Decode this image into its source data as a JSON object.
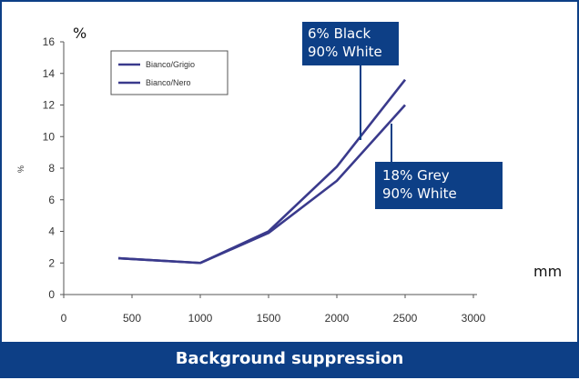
{
  "chart_data": {
    "type": "line",
    "x": [
      400,
      1000,
      1500,
      2000,
      2500
    ],
    "series": [
      {
        "name": "Bianco/Grigio",
        "values": [
          2.3,
          2.0,
          4.0,
          8.1,
          13.6
        ]
      },
      {
        "name": "Bianco/Nero",
        "values": [
          2.3,
          2.0,
          3.9,
          7.2,
          12.0
        ]
      }
    ],
    "xlim": [
      0,
      3000
    ],
    "ylim": [
      0,
      16
    ],
    "xticks": [
      "0",
      "500",
      "1000",
      "1500",
      "2000",
      "2500",
      "3000"
    ],
    "yticks": [
      "0",
      "2",
      "4",
      "6",
      "8",
      "10",
      "12",
      "14",
      "16"
    ],
    "x_unit": "mm",
    "y_unit": "%",
    "ylabel": "%",
    "line_color": "#3a3a8c",
    "legend_position": "top-left",
    "annotations": [
      {
        "lines": [
          "6% Black",
          "90% White"
        ],
        "points_to_series": 0
      },
      {
        "lines": [
          "18% Grey",
          "90% White"
        ],
        "points_to_series": 1
      }
    ],
    "caption": "Background suppression",
    "accent_color": "#0d3f86"
  }
}
